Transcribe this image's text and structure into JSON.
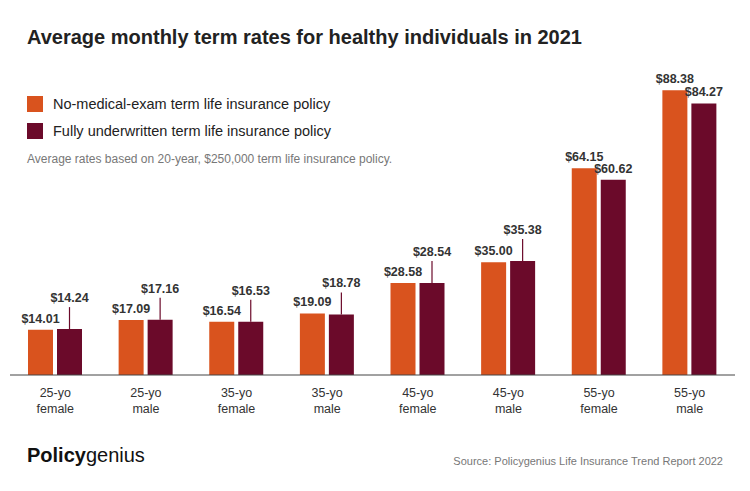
{
  "chart_data": {
    "type": "bar",
    "title": "Average monthly term rates for healthy individuals in 2021",
    "subtitle": "Average rates based on 20-year, $250,000 term life insurance policy.",
    "source": "Source: Policygenius Life Insurance Trend Report 2022",
    "logo": "Policygenius",
    "categories": [
      "25-yo female",
      "25-yo male",
      "35-yo female",
      "35-yo male",
      "45-yo female",
      "45-yo male",
      "55-yo female",
      "55-yo male"
    ],
    "series": [
      {
        "name": "No-medical-exam term life insurance policy",
        "color": "#d9531e",
        "values": [
          14.01,
          17.09,
          16.54,
          19.09,
          28.58,
          35.0,
          64.15,
          88.38
        ],
        "value_labels": [
          "$14.01",
          "$17.09",
          "$16.54",
          "$19.09",
          "$28.58",
          "$35.00",
          "$64.15",
          "$88.38"
        ]
      },
      {
        "name": "Fully underwritten term life insurance policy",
        "color": "#6b0a2a",
        "values": [
          14.24,
          17.16,
          16.53,
          18.78,
          28.54,
          35.38,
          60.62,
          84.27
        ],
        "value_labels": [
          "$14.24",
          "$17.16",
          "$16.53",
          "$18.78",
          "$28.54",
          "$35.38",
          "$60.62",
          "$84.27"
        ]
      }
    ],
    "ylim": [
      0,
      90
    ],
    "data_labels": true,
    "tick_labels": "x",
    "legend": "upper left",
    "grid": false
  }
}
